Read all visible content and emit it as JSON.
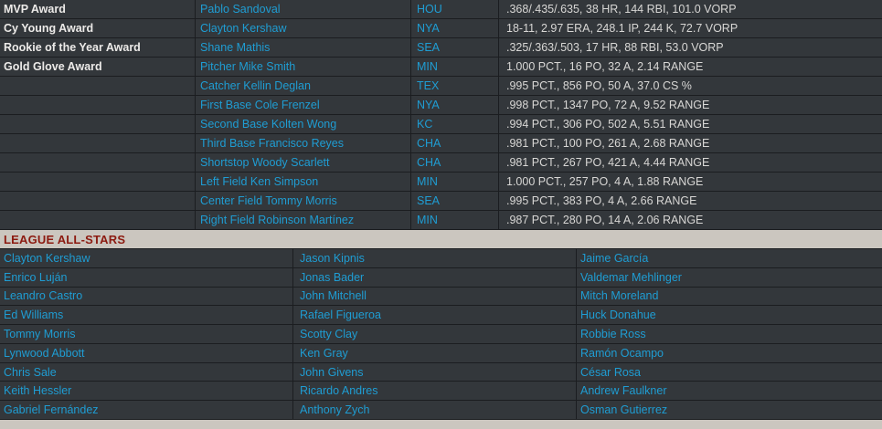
{
  "colors": {
    "row_background": "#33373b",
    "divider": "#1b1d20",
    "award_label": "#eceae8",
    "link_blue": "#1f9dd3",
    "stats_gray": "#d8d7d5",
    "header_background": "#cbc6bf",
    "header_text": "#8c1a10"
  },
  "awards": {
    "rows": [
      {
        "award": "MVP Award",
        "player": "Pablo Sandoval",
        "team": "HOU",
        "stats": ".368/.435/.635, 38 HR, 144 RBI, 101.0 VORP"
      },
      {
        "award": "Cy Young Award",
        "player": "Clayton Kershaw",
        "team": "NYA",
        "stats": "18-11, 2.97 ERA, 248.1 IP, 244 K, 72.7 VORP"
      },
      {
        "award": "Rookie of the Year Award",
        "player": "Shane Mathis",
        "team": "SEA",
        "stats": ".325/.363/.503, 17 HR, 88 RBI, 53.0 VORP"
      },
      {
        "award": "Gold Glove Award",
        "player": "Pitcher Mike Smith",
        "team": "MIN",
        "stats": "1.000 PCT., 16 PO, 32 A, 2.14 RANGE"
      },
      {
        "award": "",
        "player": "Catcher Kellin Deglan",
        "team": "TEX",
        "stats": ".995 PCT., 856 PO, 50 A, 37.0 CS %"
      },
      {
        "award": "",
        "player": "First Base Cole Frenzel",
        "team": "NYA",
        "stats": ".998 PCT., 1347 PO, 72 A, 9.52 RANGE"
      },
      {
        "award": "",
        "player": "Second Base Kolten Wong",
        "team": "KC",
        "stats": ".994 PCT., 306 PO, 502 A, 5.51 RANGE"
      },
      {
        "award": "",
        "player": "Third Base Francisco Reyes",
        "team": "CHA",
        "stats": ".981 PCT., 100 PO, 261 A, 2.68 RANGE"
      },
      {
        "award": "",
        "player": "Shortstop Woody Scarlett",
        "team": "CHA",
        "stats": ".981 PCT., 267 PO, 421 A, 4.44 RANGE"
      },
      {
        "award": "",
        "player": "Left Field Ken Simpson",
        "team": "MIN",
        "stats": "1.000 PCT., 257 PO, 4 A, 1.88 RANGE"
      },
      {
        "award": "",
        "player": "Center Field Tommy Morris",
        "team": "SEA",
        "stats": ".995 PCT., 383 PO, 4 A, 2.66 RANGE"
      },
      {
        "award": "",
        "player": "Right Field Robinson Martínez",
        "team": "MIN",
        "stats": ".987 PCT., 280 PO, 14 A, 2.06 RANGE"
      }
    ]
  },
  "all_stars": {
    "header": "LEAGUE ALL-STARS",
    "rows": [
      [
        "Clayton Kershaw",
        "Jason Kipnis",
        "Jaime García"
      ],
      [
        "Enrico Luján",
        "Jonas Bader",
        "Valdemar Mehlinger"
      ],
      [
        "Leandro Castro",
        "John Mitchell",
        "Mitch Moreland"
      ],
      [
        "Ed Williams",
        "Rafael Figueroa",
        "Huck Donahue"
      ],
      [
        "Tommy Morris",
        "Scotty Clay",
        "Robbie Ross"
      ],
      [
        "Lynwood Abbott",
        "Ken Gray",
        "Ramón Ocampo"
      ],
      [
        "Chris Sale",
        "John Givens",
        "César Rosa"
      ],
      [
        "Keith Hessler",
        "Ricardo Andres",
        "Andrew Faulkner"
      ],
      [
        "Gabriel Fernández",
        "Anthony Zych",
        "Osman Gutierrez"
      ]
    ]
  }
}
